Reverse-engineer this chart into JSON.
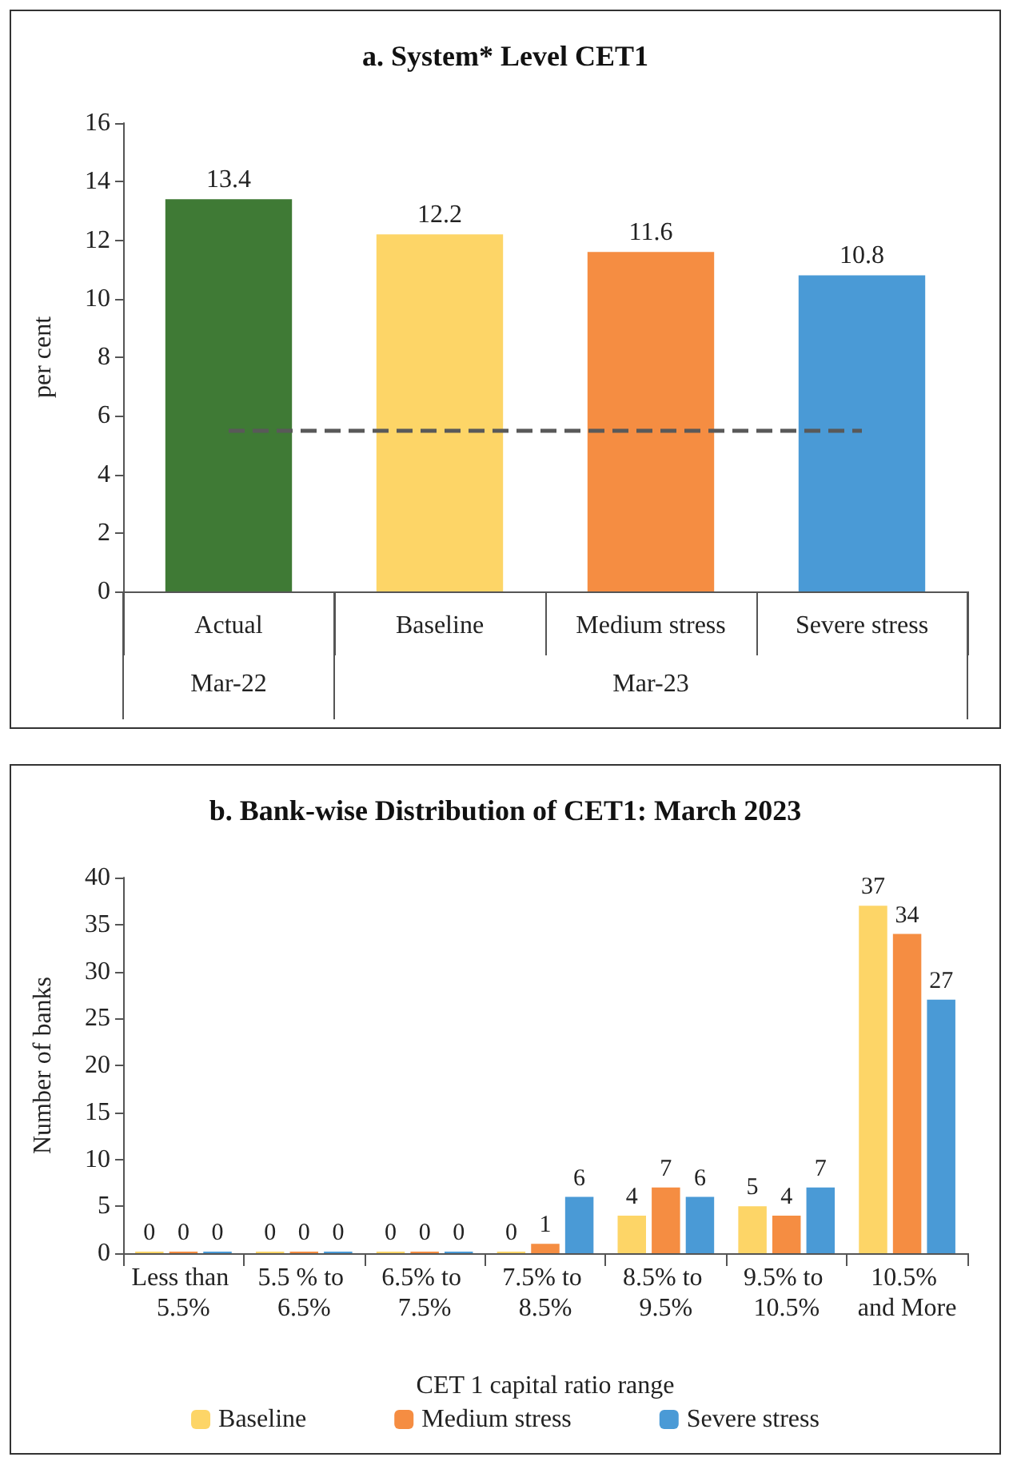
{
  "chart_data": [
    {
      "type": "bar",
      "title": "a. System* Level CET1",
      "ylabel": "per cent",
      "categories": [
        "Actual",
        "Baseline",
        "Medium stress",
        "Severe stress"
      ],
      "values": [
        13.4,
        12.2,
        11.6,
        10.8
      ],
      "colors": [
        "#3f7a35",
        "#fdd567",
        "#f58d42",
        "#4a9ad6"
      ],
      "ylim": [
        0,
        16
      ],
      "yticks": [
        0,
        2,
        4,
        6,
        8,
        10,
        12,
        14,
        16
      ],
      "grid": false,
      "legend": false,
      "data_labels": true,
      "ref_lines": [
        {
          "axis": "y",
          "value": 5.5,
          "color": "#595959",
          "line_style": "dashed"
        }
      ],
      "annotations": [
        "Mar-22",
        "Mar-23"
      ]
    },
    {
      "type": "bar",
      "title": "b. Bank-wise Distribution of CET1: March 2023",
      "xlabel": "CET 1 capital ratio range",
      "ylabel": "Number of banks",
      "categories": [
        "Less than 5.5%",
        "5.5 % to 6.5%",
        "6.5% to 7.5%",
        "7.5% to 8.5%",
        "8.5% to 9.5%",
        "9.5% to 10.5%",
        "10.5% and More"
      ],
      "series": [
        {
          "name": "Baseline",
          "color": "#fdd567",
          "values": [
            0,
            0,
            0,
            0,
            4,
            5,
            37
          ]
        },
        {
          "name": "Medium stress",
          "color": "#f58d42",
          "values": [
            0,
            0,
            0,
            1,
            7,
            4,
            34
          ]
        },
        {
          "name": "Severe stress",
          "color": "#4a9ad6",
          "values": [
            0,
            0,
            0,
            6,
            6,
            7,
            27
          ]
        }
      ],
      "ylim": [
        0,
        40
      ],
      "yticks": [
        0,
        5,
        10,
        15,
        20,
        25,
        30,
        35,
        40
      ],
      "grid": false,
      "legend": "bottom",
      "data_labels": true
    }
  ]
}
